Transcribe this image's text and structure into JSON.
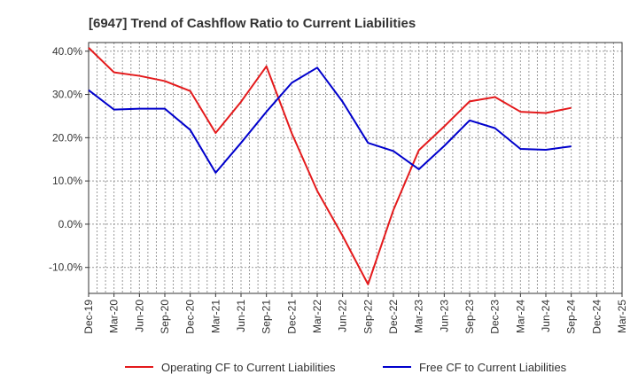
{
  "chart_data": {
    "type": "line",
    "title": "[6947]  Trend of Cashflow Ratio to Current Liabilities",
    "xlabel": "",
    "ylabel": "",
    "x": [
      "Dec-19",
      "Mar-20",
      "Jun-20",
      "Sep-20",
      "Dec-20",
      "Mar-21",
      "Jun-21",
      "Sep-21",
      "Dec-21",
      "Mar-22",
      "Jun-22",
      "Sep-22",
      "Dec-22",
      "Mar-23",
      "Jun-23",
      "Sep-23",
      "Dec-23",
      "Mar-24",
      "Jun-24",
      "Sep-24",
      "Dec-24",
      "Mar-25"
    ],
    "y_ticks": [
      40,
      30,
      20,
      10,
      0,
      -10
    ],
    "y_tick_labels": [
      "40.0%",
      "30.0%",
      "20.0%",
      "10.0%",
      "0.0%",
      "-10.0%"
    ],
    "ylim": [
      -16,
      42
    ],
    "grid": true,
    "legend_position": "bottom",
    "series": [
      {
        "name": "Operating CF to Current Liabilities",
        "color": "#e41a1c",
        "values": [
          40.8,
          35.1,
          34.3,
          33.1,
          30.8,
          21.1,
          28.3,
          36.5,
          21.0,
          7.7,
          -2.7,
          -13.9,
          3.3,
          17.1,
          22.6,
          28.4,
          29.4,
          26.0,
          25.7,
          26.9,
          null,
          null
        ]
      },
      {
        "name": "Free CF to Current Liabilities",
        "color": "#0000cc",
        "values": [
          31.0,
          26.5,
          26.7,
          26.7,
          21.8,
          11.9,
          18.8,
          26.0,
          32.7,
          36.2,
          28.3,
          18.8,
          16.9,
          12.7,
          18.1,
          24.0,
          22.2,
          17.4,
          17.2,
          18.0,
          null,
          null
        ]
      }
    ]
  }
}
